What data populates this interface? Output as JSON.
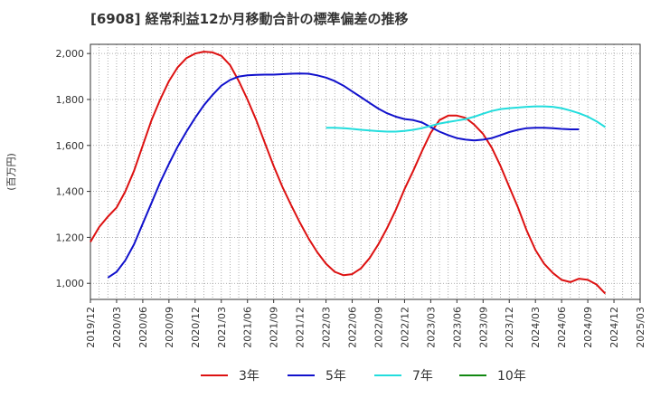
{
  "chart_data": {
    "type": "line",
    "title": "[6908]  経常利益12か月移動合計の標準偏差の推移",
    "ylabel": "(百万円)",
    "xlabel": "",
    "ylim": [
      930,
      2040
    ],
    "yticks": [
      1000,
      1200,
      1400,
      1600,
      1800,
      2000
    ],
    "ytick_labels": [
      "1,000",
      "1,200",
      "1,400",
      "1,600",
      "1,800",
      "2,000"
    ],
    "xticks": [
      "2019/12",
      "2020/03",
      "2020/06",
      "2020/09",
      "2020/12",
      "2021/03",
      "2021/06",
      "2021/09",
      "2021/12",
      "2022/03",
      "2022/06",
      "2022/09",
      "2022/12",
      "2023/03",
      "2023/06",
      "2023/09",
      "2023/12",
      "2024/03",
      "2024/06",
      "2024/09",
      "2024/12",
      "2025/03"
    ],
    "grid": true,
    "legend_position": "bottom",
    "series": [
      {
        "name": "3年",
        "color": "#dd1111",
        "start_month": 0,
        "values": [
          1180,
          1245,
          1290,
          1330,
          1400,
          1490,
          1600,
          1710,
          1800,
          1880,
          1940,
          1980,
          2000,
          2008,
          2005,
          1990,
          1950,
          1880,
          1800,
          1710,
          1610,
          1510,
          1420,
          1340,
          1265,
          1195,
          1135,
          1085,
          1050,
          1035,
          1040,
          1065,
          1110,
          1170,
          1240,
          1320,
          1410,
          1490,
          1575,
          1655,
          1710,
          1730,
          1730,
          1720,
          1690,
          1650,
          1590,
          1510,
          1420,
          1330,
          1230,
          1145,
          1085,
          1045,
          1015,
          1005,
          1020,
          1015,
          995,
          955
        ]
      },
      {
        "name": "5年",
        "color": "#1111cc",
        "start_month": 2,
        "values": [
          1025,
          1050,
          1100,
          1170,
          1260,
          1350,
          1440,
          1520,
          1595,
          1660,
          1720,
          1775,
          1820,
          1860,
          1885,
          1900,
          1905,
          1907,
          1908,
          1908,
          1910,
          1912,
          1913,
          1912,
          1905,
          1895,
          1880,
          1860,
          1835,
          1810,
          1785,
          1760,
          1740,
          1725,
          1715,
          1710,
          1700,
          1680,
          1660,
          1645,
          1632,
          1625,
          1622,
          1625,
          1632,
          1645,
          1658,
          1668,
          1675,
          1677,
          1677,
          1675,
          1672,
          1670,
          1670
        ]
      },
      {
        "name": "7年",
        "color": "#22dddd",
        "start_month": 27,
        "values": [
          1677,
          1677,
          1675,
          1672,
          1668,
          1665,
          1662,
          1660,
          1660,
          1663,
          1668,
          1675,
          1685,
          1695,
          1702,
          1708,
          1715,
          1725,
          1738,
          1750,
          1758,
          1762,
          1765,
          1768,
          1770,
          1770,
          1768,
          1762,
          1752,
          1740,
          1725,
          1705,
          1680
        ]
      },
      {
        "name": "10年",
        "color": "#118811",
        "start_month": 0,
        "values": []
      }
    ]
  }
}
